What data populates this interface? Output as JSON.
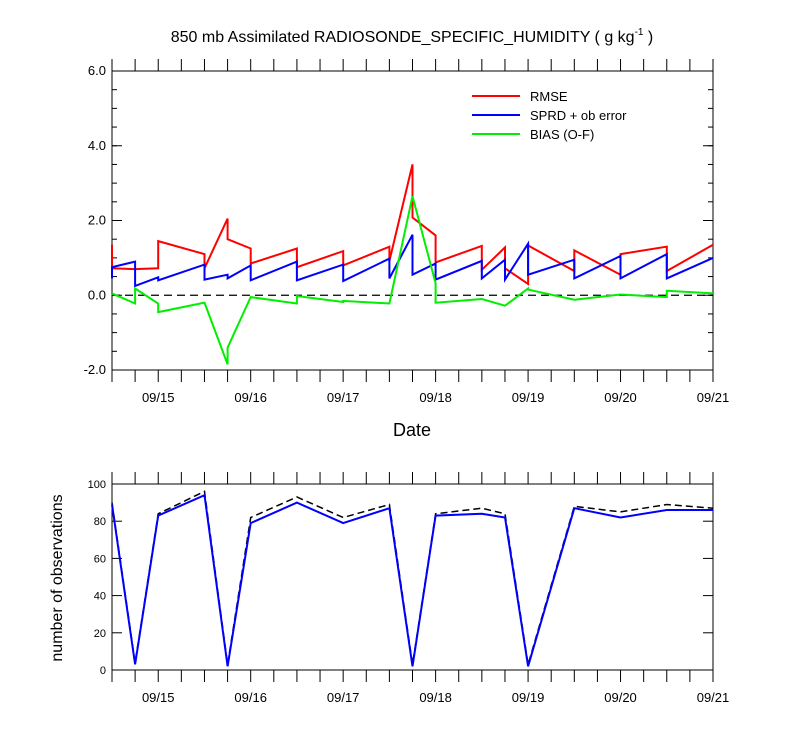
{
  "chart_data": [
    {
      "type": "line",
      "title_main": "850 mb Assimilated RADIOSONDE_SPECIFIC_HUMIDITY ( g kg",
      "title_sup": "-1",
      "title_end": " )",
      "xlabel": "Date",
      "ylabel": "",
      "xlim": [
        0,
        6.5
      ],
      "ylim": [
        -2.0,
        6.0
      ],
      "y_ticks": [
        -2.0,
        0.0,
        2.0,
        4.0,
        6.0
      ],
      "y_tick_labels": [
        "-2.0",
        "0.0",
        "2.0",
        "4.0",
        "6.0"
      ],
      "x_ticks": [
        0.5,
        1.5,
        2.5,
        3.5,
        4.5,
        5.5,
        6.5
      ],
      "x_tick_labels": [
        "09/15",
        "09/16",
        "09/17",
        "09/18",
        "09/19",
        "09/20",
        "09/21"
      ],
      "x_minor_ticks": [
        0,
        0.25,
        0.75,
        1,
        1.25,
        1.75,
        2,
        2.25,
        2.75,
        3,
        3.25,
        3.75,
        4,
        4.25,
        4.75,
        5,
        5.25,
        5.75,
        6,
        6.25
      ],
      "zero_line": true,
      "legend_position": "top-right",
      "series": [
        {
          "name": "RMSE",
          "color": "#ff0000",
          "x": [
            0,
            0,
            0.25,
            0.25,
            0.5,
            0.5,
            1,
            1,
            1.25,
            1.25,
            1.5,
            1.5,
            2,
            2,
            2.5,
            2.5,
            3,
            3,
            3.25,
            3.25,
            3.5,
            3.5,
            4,
            4,
            4.25,
            4.25,
            4.5,
            4.5,
            5,
            5,
            5.5,
            5.5,
            6,
            6,
            6.5
          ],
          "y": [
            1.35,
            0.72,
            0.7,
            0.7,
            0.72,
            1.45,
            1.1,
            0.72,
            2.05,
            1.5,
            1.25,
            0.85,
            1.25,
            0.75,
            1.18,
            0.8,
            1.3,
            0.92,
            3.5,
            2.08,
            1.6,
            0.88,
            1.32,
            0.68,
            1.28,
            0.72,
            0.3,
            1.33,
            0.65,
            1.2,
            0.55,
            1.1,
            1.3,
            0.65,
            1.35
          ]
        },
        {
          "name": "SPRD + ob error",
          "color": "#0000ff",
          "x": [
            0,
            0,
            0.25,
            0.25,
            0.5,
            0.5,
            1,
            1,
            1.25,
            1.25,
            1.5,
            1.5,
            2,
            2,
            2.5,
            2.5,
            3,
            3,
            3.25,
            3.25,
            3.5,
            3.5,
            4,
            4,
            4.25,
            4.25,
            4.5,
            4.5,
            5,
            5,
            5.5,
            5.5,
            6,
            6,
            6.5
          ],
          "y": [
            0.45,
            0.75,
            0.9,
            0.25,
            0.48,
            0.4,
            0.82,
            0.42,
            0.55,
            0.45,
            0.8,
            0.4,
            0.9,
            0.4,
            0.82,
            0.38,
            0.98,
            0.45,
            1.62,
            0.55,
            0.85,
            0.42,
            0.92,
            0.45,
            0.95,
            0.42,
            1.38,
            0.55,
            0.95,
            0.45,
            1.05,
            0.45,
            1.1,
            0.45,
            1.0
          ]
        },
        {
          "name": "BIAS (O-F)",
          "color": "#00ee00",
          "x": [
            0,
            0.25,
            0.25,
            0.5,
            0.5,
            1,
            1.25,
            1.25,
            1.5,
            2,
            2,
            2.5,
            2.5,
            3,
            3.25,
            3.5,
            3.5,
            4,
            4.25,
            4.5,
            4.5,
            5,
            5.5,
            6,
            6,
            6.5
          ],
          "y": [
            0.05,
            -0.22,
            0.18,
            -0.22,
            -0.45,
            -0.2,
            -1.85,
            -1.4,
            -0.05,
            -0.22,
            -0.02,
            -0.18,
            -0.15,
            -0.22,
            2.65,
            0.32,
            -0.2,
            -0.1,
            -0.28,
            0.18,
            0.15,
            -0.12,
            0.02,
            -0.05,
            0.12,
            0.05
          ]
        }
      ]
    },
    {
      "type": "line",
      "title": "",
      "xlabel": "",
      "ylabel": "number of observations",
      "xlim": [
        0,
        6.5
      ],
      "ylim": [
        0,
        100
      ],
      "y_ticks": [
        0,
        20,
        40,
        60,
        80,
        100
      ],
      "y_tick_labels": [
        "0",
        "20",
        "40",
        "60",
        "80",
        "100"
      ],
      "x_ticks": [
        0.5,
        1.5,
        2.5,
        3.5,
        4.5,
        5.5,
        6.5
      ],
      "x_tick_labels": [
        "09/15",
        "09/16",
        "09/17",
        "09/18",
        "09/19",
        "09/20",
        "09/21"
      ],
      "series": [
        {
          "style": "dashed",
          "color": "#000000",
          "x": [
            0,
            0.25,
            0.5,
            1,
            1.25,
            1.5,
            2,
            2.5,
            3,
            3.25,
            3.5,
            4,
            4.25,
            4.5,
            5,
            5.5,
            6,
            6.5
          ],
          "y": [
            90,
            4,
            84,
            96,
            3,
            82,
            93,
            82,
            89,
            3,
            84,
            87,
            84,
            3,
            88,
            85,
            89,
            87
          ]
        },
        {
          "style": "solid",
          "color": "#0000ff",
          "x": [
            0,
            0.25,
            0.5,
            1,
            1.25,
            1.5,
            2,
            2.5,
            3,
            3.25,
            3.5,
            4,
            4.25,
            4.5,
            5,
            5.5,
            6,
            6.5
          ],
          "y": [
            89,
            3,
            83,
            94,
            2,
            79,
            90,
            79,
            87,
            2,
            83,
            84,
            82,
            2,
            87,
            82,
            86,
            86
          ]
        }
      ]
    }
  ]
}
